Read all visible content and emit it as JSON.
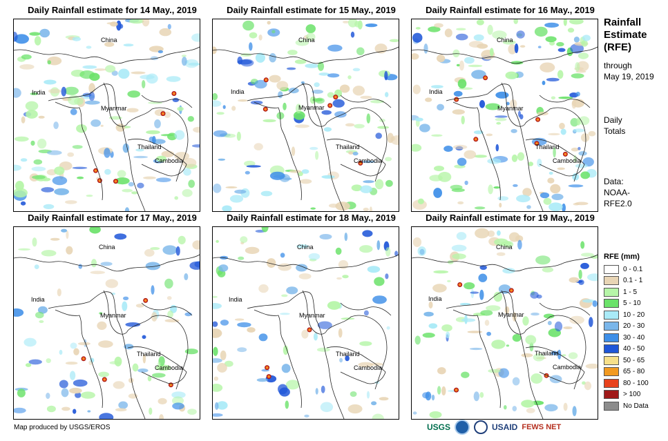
{
  "panels": [
    {
      "title": "Daily Rainfall estimate for 14 May., 2019"
    },
    {
      "title": "Daily Rainfall estimate for 15 May., 2019"
    },
    {
      "title": "Daily Rainfall estimate for 16 May., 2019"
    },
    {
      "title": "Daily Rainfall estimate for 17 May., 2019"
    },
    {
      "title": "Daily Rainfall estimate for 18 May., 2019"
    },
    {
      "title": "Daily Rainfall estimate for 19 May., 2019"
    }
  ],
  "labels": {
    "china": "China",
    "india": "India",
    "myanmar": "Myanmar",
    "thailand": "Thailand",
    "cambodia": "Cambodia"
  },
  "side": {
    "title_line1": "Rainfall",
    "title_line2": "Estimate",
    "title_line3": "(RFE)",
    "through": "through",
    "date": "May 19, 2019",
    "daily1": "Daily",
    "daily2": "Totals",
    "data1": "Data:",
    "data2": "NOAA-",
    "data3": "RFE2.0"
  },
  "legend": {
    "title": "RFE (mm)",
    "items": [
      {
        "label": "0 - 0.1",
        "color": "#ffffff"
      },
      {
        "label": "0.1 - 1",
        "color": "#e8d5b5"
      },
      {
        "label": "1 - 5",
        "color": "#b6f5a8"
      },
      {
        "label": "5 - 10",
        "color": "#6be26a"
      },
      {
        "label": "10 - 20",
        "color": "#a9eaf7"
      },
      {
        "label": "20 - 30",
        "color": "#7ab6ea"
      },
      {
        "label": "30 - 40",
        "color": "#3e8fe8"
      },
      {
        "label": "40 - 50",
        "color": "#1f56d8"
      },
      {
        "label": "50 - 65",
        "color": "#f7e08a"
      },
      {
        "label": "65 - 80",
        "color": "#f29a21"
      },
      {
        "label": "80 - 100",
        "color": "#e8421c"
      },
      {
        "label": "> 100",
        "color": "#a01a1a"
      },
      {
        "label": "No Data",
        "color": "#8c8c8c"
      }
    ]
  },
  "footer": "Map produced by USGS/EROS",
  "logos": {
    "usgs": "USGS",
    "usaid": "USAID",
    "fews": "FEWS NET"
  }
}
